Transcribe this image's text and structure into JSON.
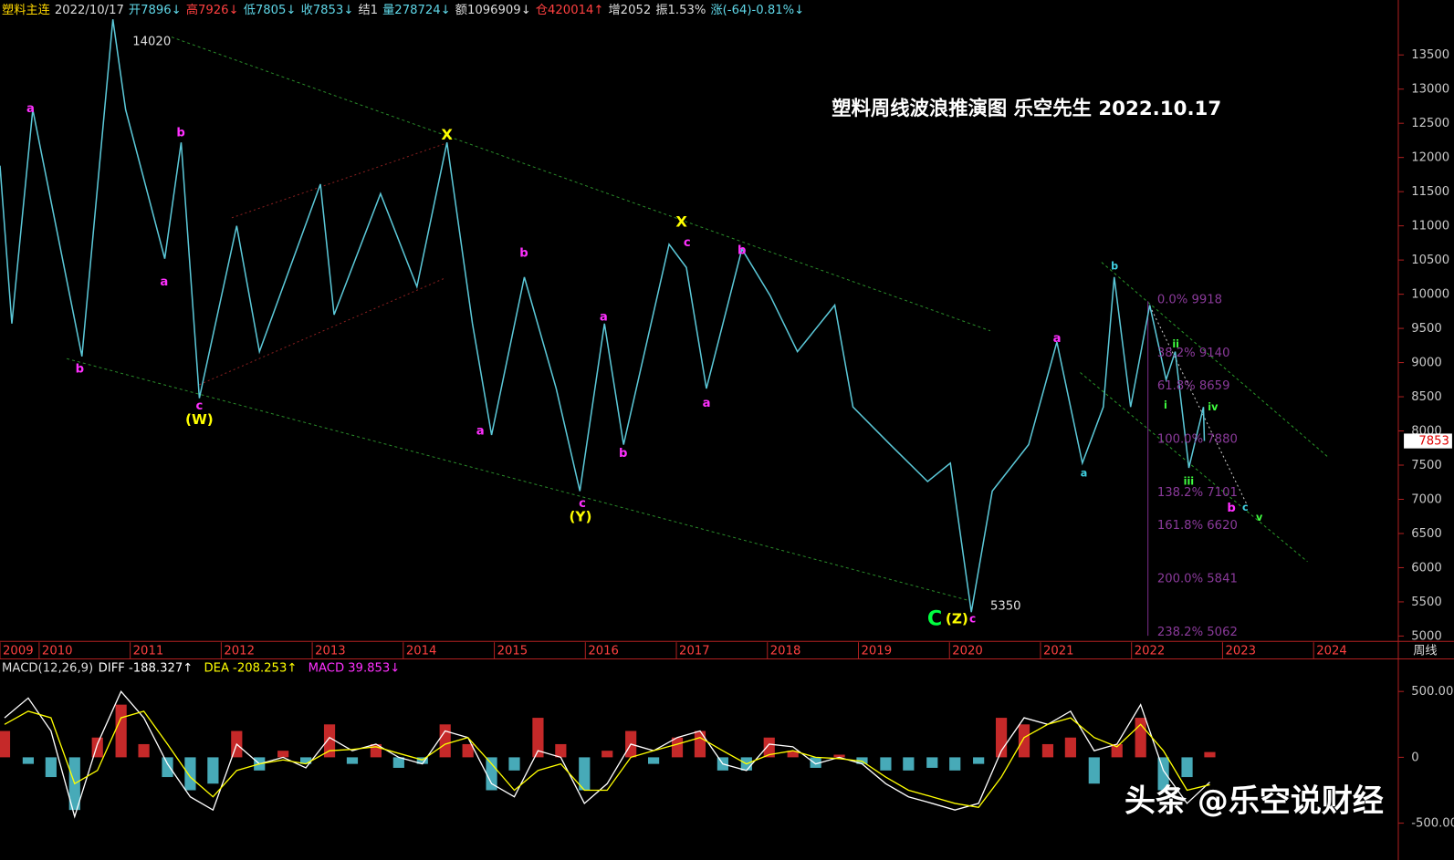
{
  "header": {
    "fields": [
      {
        "text": "塑料主连",
        "color": "#ffd800"
      },
      {
        "text": "2022/10/17",
        "color": "#dddddd"
      },
      {
        "text": "开7896↓",
        "color": "#5fd7e8"
      },
      {
        "text": "高7926↓",
        "color": "#ff4040"
      },
      {
        "text": "低7805↓",
        "color": "#5fd7e8"
      },
      {
        "text": "收7853↓",
        "color": "#5fd7e8"
      },
      {
        "text": "结1",
        "color": "#dddddd"
      },
      {
        "text": "量278724↓",
        "color": "#5fd7e8"
      },
      {
        "text": "额1096909↓",
        "color": "#dddddd"
      },
      {
        "text": "仓420014↑",
        "color": "#ff4040"
      },
      {
        "text": "增2052",
        "color": "#dddddd"
      },
      {
        "text": "振1.53%",
        "color": "#dddddd"
      },
      {
        "text": "涨(-64)-0.81%↓",
        "color": "#5fd7e8"
      }
    ],
    "period": "周线"
  },
  "watermark": "头条 @乐空说财经",
  "chart_data": [
    {
      "type": "line",
      "title": "塑料周线波浪推演图 乐空先生 2022.10.17",
      "color": "#5bc8d8",
      "x": [
        2009.57,
        2009.7,
        2009.93,
        2010.47,
        2010.81,
        2010.95,
        2011.38,
        2011.56,
        2011.76,
        2012.17,
        2012.42,
        2013.09,
        2013.24,
        2013.75,
        2014.15,
        2014.48,
        2014.76,
        2014.97,
        2015.33,
        2015.68,
        2015.94,
        2016.21,
        2016.42,
        2016.92,
        2017.11,
        2017.33,
        2017.72,
        2018.03,
        2018.33,
        2018.74,
        2018.94,
        2019.35,
        2019.76,
        2020.01,
        2020.24,
        2020.47,
        2020.87,
        2021.18,
        2021.46,
        2021.69,
        2021.81,
        2021.99,
        2022.2,
        2022.38,
        2022.48,
        2022.63,
        2022.79,
        2022.8
      ],
      "values": [
        11880,
        9570,
        12700,
        9090,
        14020,
        12700,
        10520,
        12220,
        8480,
        11000,
        9160,
        11610,
        9700,
        11470,
        10110,
        12220,
        9570,
        7940,
        10250,
        8620,
        7120,
        9570,
        7800,
        10730,
        10390,
        8620,
        10660,
        9980,
        9160,
        9840,
        8350,
        7800,
        7260,
        7530,
        5350,
        7120,
        7800,
        9300,
        7530,
        8350,
        10250,
        8350,
        9840,
        8750,
        9160,
        7460,
        8350,
        7853
      ],
      "xlim": [
        2009.57,
        2024.9
      ],
      "ylim": [
        4950,
        14100
      ],
      "xticks": [
        {
          "value": 2009.57,
          "label": "2009"
        },
        2010,
        2011,
        2012,
        2013,
        2014,
        2015,
        2016,
        2017,
        2018,
        2019,
        2020,
        2021,
        2022,
        2023,
        2024
      ],
      "yticks": [
        5000,
        5500,
        6000,
        6500,
        7000,
        7500,
        8000,
        8500,
        9000,
        9500,
        10000,
        10500,
        11000,
        11500,
        12000,
        12500,
        13000,
        13500
      ],
      "peak_values": [
        14020,
        5350
      ],
      "annotations": [
        {
          "text": "a",
          "color": "#ff30ff"
        },
        {
          "text": "b",
          "color": "#ff30ff"
        },
        {
          "text": "a",
          "color": "#ff30ff"
        },
        {
          "text": "b",
          "color": "#ff30ff"
        },
        {
          "text": "c",
          "color": "#ff30ff"
        },
        {
          "text": "(W)",
          "color": "#ffff00"
        },
        {
          "text": "X",
          "color": "#ffff00"
        },
        {
          "text": "a",
          "color": "#ff30ff"
        },
        {
          "text": "b",
          "color": "#ff30ff"
        },
        {
          "text": "c",
          "color": "#ff30ff"
        },
        {
          "text": "(Y)",
          "color": "#ffff00"
        },
        {
          "text": "a",
          "color": "#ff30ff"
        },
        {
          "text": "b",
          "color": "#ff30ff"
        },
        {
          "text": "X",
          "color": "#ffff00"
        },
        {
          "text": "c",
          "color": "#ff30ff"
        },
        {
          "text": "b",
          "color": "#ff30ff"
        },
        {
          "text": "a",
          "color": "#ff30ff"
        },
        {
          "text": "c",
          "color": "#ff30ff"
        },
        {
          "text": "C",
          "color": "#00ff40"
        },
        {
          "text": "(Z)",
          "color": "#ffff00"
        },
        {
          "text": "a",
          "color": "#ff30ff"
        },
        {
          "text": "a",
          "color": "#40d0e0"
        },
        {
          "text": "b",
          "color": "#40d0e0"
        },
        {
          "text": "i",
          "color": "#40ff40"
        },
        {
          "text": "ii",
          "color": "#40ff40"
        },
        {
          "text": "iii",
          "color": "#40ff40"
        },
        {
          "text": "iv",
          "color": "#40ff40"
        },
        {
          "text": "v",
          "color": "#40ff40"
        },
        {
          "text": "b",
          "color": "#ff30ff"
        },
        {
          "text": "c",
          "color": "#40d0e0"
        }
      ],
      "fib_levels": [
        {
          "value": 9918,
          "label": "0.0% 9918"
        },
        {
          "value": 9140,
          "label": "38.2% 9140"
        },
        {
          "value": 8659,
          "label": "61.8% 8659"
        },
        {
          "value": 7880,
          "label": "100.0% 7880"
        },
        {
          "value": 7101,
          "label": "138.2% 7101"
        },
        {
          "value": 6620,
          "label": "161.8% 6620"
        },
        {
          "value": 5841,
          "label": "200.0% 5841"
        },
        {
          "value": 5062,
          "label": "238.2% 5062"
        }
      ]
    },
    {
      "type": "macd",
      "title": "MACD(12,26,9)",
      "x": [
        2009.62,
        2009.88,
        2010.13,
        2010.39,
        2010.64,
        2010.9,
        2011.15,
        2011.41,
        2011.66,
        2011.91,
        2012.17,
        2012.42,
        2012.68,
        2012.93,
        2013.19,
        2013.44,
        2013.7,
        2013.95,
        2014.21,
        2014.46,
        2014.71,
        2014.97,
        2015.22,
        2015.48,
        2015.73,
        2015.99,
        2016.24,
        2016.5,
        2016.75,
        2017.01,
        2017.26,
        2017.51,
        2017.77,
        2018.02,
        2018.28,
        2018.53,
        2018.79,
        2019.04,
        2019.3,
        2019.55,
        2019.81,
        2020.06,
        2020.32,
        2020.57,
        2020.82,
        2021.08,
        2021.33,
        2021.59,
        2021.84,
        2022.1,
        2022.35,
        2022.61,
        2022.86
      ],
      "xlim": [
        2009.57,
        2024.9
      ],
      "ylim": [
        -780,
        740
      ],
      "yticks": [
        {
          "value": 500,
          "label": "500.00"
        },
        0,
        {
          "value": -500,
          "label": "-500.00"
        }
      ],
      "series": [
        {
          "name": "DIFF",
          "current_label": "-188.327↑",
          "color": "#ffffff",
          "values": [
            300,
            450,
            200,
            -450,
            100,
            500,
            300,
            -50,
            -300,
            -400,
            100,
            -50,
            0,
            -80,
            150,
            50,
            100,
            0,
            -50,
            200,
            150,
            -200,
            -300,
            50,
            0,
            -350,
            -200,
            100,
            50,
            150,
            200,
            -50,
            -100,
            100,
            80,
            -50,
            0,
            -50,
            -200,
            -300,
            -350,
            -400,
            -350,
            50,
            300,
            250,
            350,
            50,
            100,
            400,
            -100,
            -350,
            -188
          ]
        },
        {
          "name": "DEA",
          "current_label": "-208.253↑",
          "color": "#ffff00",
          "values": [
            250,
            350,
            300,
            -200,
            -100,
            300,
            350,
            100,
            -150,
            -300,
            -100,
            -50,
            -20,
            -50,
            50,
            60,
            80,
            30,
            -20,
            100,
            150,
            -50,
            -250,
            -100,
            -50,
            -250,
            -250,
            0,
            50,
            100,
            150,
            50,
            -50,
            20,
            50,
            0,
            -10,
            -30,
            -150,
            -250,
            -300,
            -350,
            -380,
            -150,
            150,
            250,
            300,
            150,
            80,
            250,
            50,
            -250,
            -208
          ]
        },
        {
          "name": "MACD",
          "current_label": "39.853↓",
          "color": "#ff30ff",
          "up_color": "#e83030",
          "down_color": "#54c8d8",
          "values": [
            200,
            -50,
            -150,
            -400,
            150,
            400,
            100,
            -150,
            -250,
            -200,
            200,
            -100,
            50,
            -50,
            250,
            -50,
            100,
            -80,
            -50,
            250,
            100,
            -250,
            -100,
            300,
            100,
            -250,
            50,
            200,
            -50,
            150,
            200,
            -100,
            -100,
            150,
            50,
            -80,
            20,
            -50,
            -100,
            -100,
            -80,
            -100,
            -50,
            300,
            250,
            100,
            150,
            -200,
            100,
            300,
            -250,
            -150,
            40
          ]
        }
      ]
    }
  ]
}
